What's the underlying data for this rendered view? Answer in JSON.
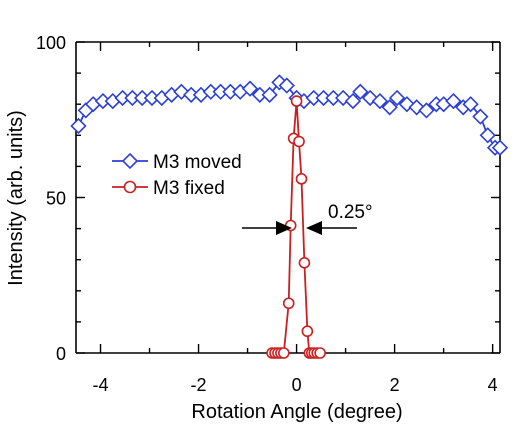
{
  "chart_data": {
    "type": "line",
    "title": "",
    "xlabel": "Rotation Angle (degree)",
    "ylabel": "Intensity (arb. units)",
    "xlim": [
      -4.5,
      4.15
    ],
    "ylim": [
      0,
      100
    ],
    "x_ticks": [
      -4,
      -2,
      0,
      2,
      4
    ],
    "x_tick_labels": [
      "-4",
      "-2",
      "0",
      "2",
      "4"
    ],
    "y_ticks": [
      0,
      50,
      100
    ],
    "y_tick_labels": [
      "0",
      "50",
      "100"
    ],
    "grid": false,
    "legend_position": "center-left",
    "series": [
      {
        "name": "M3 moved",
        "color": "#2c3fd6",
        "marker": "diamond",
        "x": [
          -4.45,
          -4.3,
          -4.15,
          -3.95,
          -3.75,
          -3.55,
          -3.35,
          -3.15,
          -2.95,
          -2.75,
          -2.55,
          -2.35,
          -2.15,
          -1.95,
          -1.75,
          -1.55,
          -1.35,
          -1.15,
          -0.95,
          -0.75,
          -0.55,
          -0.35,
          -0.2,
          0.0,
          0.15,
          0.35,
          0.55,
          0.75,
          0.95,
          1.15,
          1.3,
          1.5,
          1.7,
          1.9,
          2.05,
          2.25,
          2.45,
          2.65,
          2.85,
          3.0,
          3.2,
          3.4,
          3.55,
          3.75,
          3.9,
          4.05,
          4.15
        ],
        "values": [
          73,
          78,
          80,
          81,
          81,
          82,
          82,
          82,
          82,
          82,
          83,
          84,
          83,
          83,
          84,
          84,
          84,
          84,
          85,
          83,
          83,
          87,
          86,
          82,
          81,
          82,
          82,
          82,
          82,
          81,
          84,
          82,
          81,
          79,
          82,
          80,
          79,
          78,
          80,
          80,
          81,
          79,
          80,
          76,
          70,
          66,
          66
        ]
      },
      {
        "name": "M3 fixed",
        "color": "#cc1f1f",
        "marker": "circle",
        "x": [
          -0.5,
          -0.44,
          -0.38,
          -0.32,
          -0.26,
          -0.16,
          -0.12,
          -0.06,
          0.0,
          0.05,
          0.1,
          0.16,
          0.22,
          0.26,
          0.31,
          0.36,
          0.42,
          0.48
        ],
        "values": [
          0,
          0,
          0,
          0,
          0,
          16,
          41,
          69,
          81,
          68,
          56,
          29,
          7,
          0,
          0,
          0,
          0,
          0
        ]
      }
    ],
    "annotations": [
      {
        "text": "0.25°",
        "x": 0.95,
        "y": 44
      }
    ],
    "axis_color": "#000000"
  }
}
